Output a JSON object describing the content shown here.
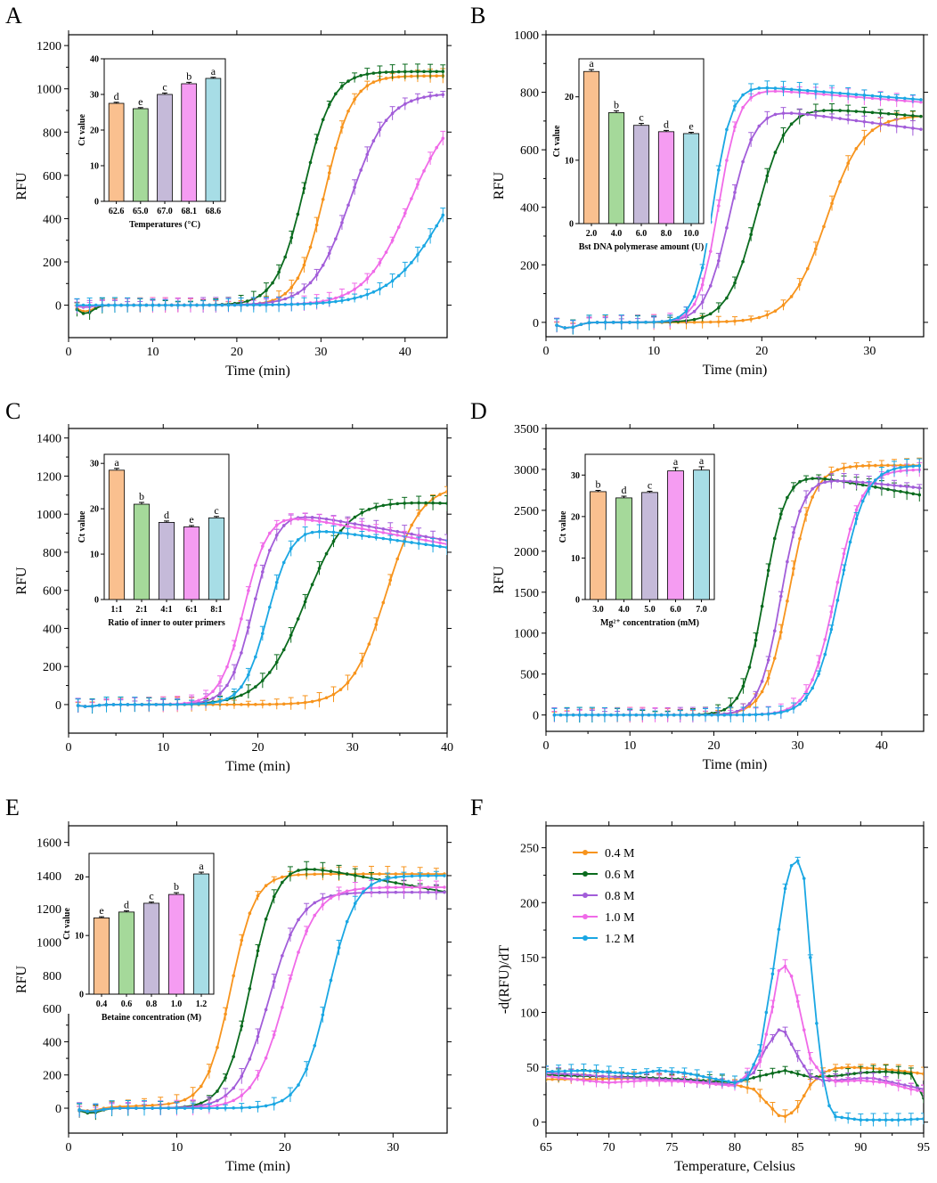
{
  "colors": {
    "orange": "#F7941D",
    "green": "#0A6B1E",
    "purple": "#A25DD9",
    "pink": "#F06AE8",
    "cyan": "#1AA7E3",
    "bar_orange": "#FAC08F",
    "bar_green": "#A5D99A",
    "bar_purple": "#C5BAD9",
    "bar_pink": "#F59CF2",
    "bar_cyan": "#A7DDE6"
  },
  "chart_data": [
    {
      "id": "A",
      "type": "line",
      "panel_label": "A",
      "xlabel": "Time (min)",
      "ylabel": "RFU",
      "xlim": [
        0,
        45
      ],
      "ylim": [
        -150,
        1250
      ],
      "xticks": [
        0,
        10,
        20,
        30,
        40
      ],
      "yticks": [
        0,
        200,
        400,
        600,
        800,
        1000,
        1200
      ],
      "xtick_labels": [
        "0",
        "10",
        "20",
        "30",
        "40"
      ],
      "ytick_labels": [
        "0",
        "200",
        "400",
        "600",
        "800",
        "1000",
        "1200"
      ],
      "series": [
        {
          "name": "62.6",
          "color": "orange",
          "plateau": 1060,
          "t50": 30.5,
          "k": 0.62,
          "dip": -30
        },
        {
          "name": "65.0",
          "color": "green",
          "plateau": 1080,
          "t50": 28.0,
          "k": 0.6,
          "dip": -40
        },
        {
          "name": "67.0",
          "color": "purple",
          "plateau": 980,
          "t50": 33.5,
          "k": 0.45,
          "dip": -10
        },
        {
          "name": "68.1",
          "color": "pink",
          "plateau": 940,
          "t50": 40.5,
          "k": 0.38,
          "dip": -5
        },
        {
          "name": "68.6",
          "color": "cyan",
          "plateau": 900,
          "t50": 45.0,
          "k": 0.3,
          "dip": 0
        }
      ],
      "inset": {
        "xlabel": "Temperatures (°C)",
        "ylabel": "Ct value",
        "ylim": [
          0,
          40
        ],
        "yticks": [
          0,
          10,
          20,
          30,
          40
        ],
        "ytick_labels": [
          "0",
          "10",
          "20",
          "30",
          "40"
        ],
        "categories": [
          "62.6",
          "65.0",
          "67.0",
          "68.1",
          "68.6"
        ],
        "values": [
          27.5,
          26.0,
          30.0,
          33.0,
          34.5
        ],
        "errors": [
          0.3,
          0.3,
          0.4,
          0.4,
          0.3
        ],
        "letters": [
          "d",
          "e",
          "c",
          "b",
          "a"
        ]
      }
    },
    {
      "id": "B",
      "type": "line",
      "panel_label": "B",
      "xlabel": "Time (min)",
      "ylabel": "RFU",
      "xlim": [
        0,
        35
      ],
      "ylim": [
        -50,
        1000
      ],
      "xticks": [
        0,
        10,
        20,
        30
      ],
      "yticks": [
        0,
        200,
        400,
        600,
        800,
        1000
      ],
      "xtick_labels": [
        "0",
        "10",
        "20",
        "30"
      ],
      "ytick_labels": [
        "0",
        "200",
        "400",
        "600",
        "800",
        "1000"
      ],
      "series": [
        {
          "name": "2.0",
          "color": "orange",
          "plateau": 720,
          "t50": 26.0,
          "k": 0.6,
          "dip": -20
        },
        {
          "name": "4.0",
          "color": "green",
          "plateau": 750,
          "t50": 19.5,
          "k": 0.75,
          "dip": -20,
          "decline": 3
        },
        {
          "name": "6.0",
          "color": "purple",
          "plateau": 740,
          "t50": 17.0,
          "k": 0.9,
          "dip": -20,
          "decline": 5
        },
        {
          "name": "8.0",
          "color": "pink",
          "plateau": 810,
          "t50": 16.0,
          "k": 1.1,
          "dip": -20,
          "decline": 3
        },
        {
          "name": "10.0",
          "color": "cyan",
          "plateau": 820,
          "t50": 15.5,
          "k": 1.2,
          "dip": -20,
          "decline": 3
        }
      ],
      "inset": {
        "xlabel": "Bst DNA polymerase amount (U)",
        "ylabel": "Ct value",
        "ylim": [
          0,
          26
        ],
        "yticks": [
          0,
          10,
          20
        ],
        "ytick_labels": [
          "0",
          "10",
          "20"
        ],
        "categories": [
          "2.0",
          "4.0",
          "6.0",
          "8.0",
          "10.0"
        ],
        "values": [
          24.0,
          17.5,
          15.5,
          14.5,
          14.2
        ],
        "errors": [
          0.3,
          0.3,
          0.3,
          0.2,
          0.2
        ],
        "letters": [
          "a",
          "b",
          "c",
          "d",
          "e"
        ]
      }
    },
    {
      "id": "C",
      "type": "line",
      "panel_label": "C",
      "xlabel": "Time (min)",
      "ylabel": "RFU",
      "xlim": [
        0,
        40
      ],
      "ylim": [
        -150,
        1450
      ],
      "xticks": [
        0,
        10,
        20,
        30,
        40
      ],
      "yticks": [
        0,
        200,
        400,
        600,
        800,
        1000,
        1200,
        1400
      ],
      "xtick_labels": [
        "0",
        "10",
        "20",
        "30",
        "40"
      ],
      "ytick_labels": [
        "0",
        "200",
        "400",
        "600",
        "800",
        "1000",
        "1200",
        "1400"
      ],
      "series": [
        {
          "name": "1:1",
          "color": "orange",
          "plateau": 1150,
          "t50": 33.5,
          "k": 0.55,
          "dip": -10
        },
        {
          "name": "2:1",
          "color": "green",
          "plateau": 1080,
          "t50": 25.0,
          "k": 0.45,
          "dip": -10,
          "decline": 2
        },
        {
          "name": "4:1",
          "color": "purple",
          "plateau": 1010,
          "t50": 19.5,
          "k": 0.8,
          "dip": -10,
          "decline": 9
        },
        {
          "name": "6:1",
          "color": "pink",
          "plateau": 1000,
          "t50": 18.5,
          "k": 0.8,
          "dip": -10,
          "decline": 9
        },
        {
          "name": "8:1",
          "color": "cyan",
          "plateau": 930,
          "t50": 21.0,
          "k": 0.8,
          "dip": -10,
          "decline": 7
        }
      ],
      "inset": {
        "xlabel": "Ratio of inner to outer primers",
        "ylabel": "Ct value",
        "ylim": [
          0,
          32
        ],
        "yticks": [
          0,
          10,
          20,
          30
        ],
        "ytick_labels": [
          "0",
          "10",
          "20",
          "30"
        ],
        "categories": [
          "1:1",
          "2:1",
          "4:1",
          "6:1",
          "8:1"
        ],
        "values": [
          28.5,
          21.0,
          17.0,
          16.0,
          18.0
        ],
        "errors": [
          0.4,
          0.4,
          0.3,
          0.3,
          0.3
        ],
        "letters": [
          "a",
          "b",
          "d",
          "e",
          "c"
        ]
      }
    },
    {
      "id": "D",
      "type": "line",
      "panel_label": "D",
      "xlabel": "Time (min)",
      "ylabel": "RFU",
      "xlim": [
        0,
        45
      ],
      "ylim": [
        -200,
        3500
      ],
      "xticks": [
        0,
        10,
        20,
        30,
        40
      ],
      "yticks": [
        0,
        500,
        1000,
        1500,
        2000,
        2500,
        3000,
        3500
      ],
      "xtick_labels": [
        "0",
        "10",
        "20",
        "30",
        "40"
      ],
      "ytick_labels": [
        "0",
        "500",
        "1000",
        "1500",
        "2000",
        "2500",
        "3000",
        "3500"
      ],
      "series": [
        {
          "name": "3.0",
          "color": "orange",
          "plateau": 3050,
          "t50": 29.0,
          "k": 0.7,
          "dip": 0
        },
        {
          "name": "4.0",
          "color": "green",
          "plateau": 2950,
          "t50": 26.0,
          "k": 0.8,
          "dip": 0,
          "decline": 18
        },
        {
          "name": "5.0",
          "color": "purple",
          "plateau": 2900,
          "t50": 28.0,
          "k": 0.8,
          "dip": 0,
          "decline": 10
        },
        {
          "name": "6.0",
          "color": "pink",
          "plateau": 3000,
          "t50": 34.5,
          "k": 0.65,
          "dip": 0
        },
        {
          "name": "7.0",
          "color": "cyan",
          "plateau": 3050,
          "t50": 35.0,
          "k": 0.65,
          "dip": 0
        }
      ],
      "inset": {
        "xlabel": "Mg²⁺ concentration (mM)",
        "ylabel": "Ct value",
        "ylim": [
          0,
          35
        ],
        "yticks": [
          0,
          10,
          20,
          30
        ],
        "ytick_labels": [
          "0",
          "10",
          "20",
          "30"
        ],
        "categories": [
          "3.0",
          "4.0",
          "5.0",
          "6.0",
          "7.0"
        ],
        "values": [
          26.0,
          24.5,
          25.8,
          31.0,
          31.2
        ],
        "errors": [
          0.3,
          0.4,
          0.3,
          0.8,
          0.8
        ],
        "letters": [
          "b",
          "d",
          "c",
          "a",
          "a"
        ]
      }
    },
    {
      "id": "E",
      "type": "line",
      "panel_label": "E",
      "xlabel": "Time (min)",
      "ylabel": "RFU",
      "xlim": [
        0,
        35
      ],
      "ylim": [
        -150,
        1700
      ],
      "xticks": [
        0,
        10,
        20,
        30
      ],
      "yticks": [
        0,
        200,
        400,
        600,
        800,
        1000,
        1200,
        1400,
        1600
      ],
      "xtick_labels": [
        "0",
        "10",
        "20",
        "30"
      ],
      "ytick_labels": [
        "0",
        "200",
        "400",
        "600",
        "800",
        "1000",
        "1200",
        "1400",
        "1600"
      ],
      "series": [
        {
          "name": "0.4",
          "color": "orange",
          "plateau": 1380,
          "t50": 15.0,
          "k": 0.9,
          "dip": -20,
          "base": 30
        },
        {
          "name": "0.6",
          "color": "green",
          "plateau": 1470,
          "t50": 16.8,
          "k": 0.85,
          "dip": -30,
          "decline": 12
        },
        {
          "name": "0.8",
          "color": "purple",
          "plateau": 1300,
          "t50": 18.5,
          "k": 0.7,
          "dip": -20
        },
        {
          "name": "1.0",
          "color": "pink",
          "plateau": 1330,
          "t50": 20.0,
          "k": 0.7,
          "dip": -20
        },
        {
          "name": "1.2",
          "color": "cyan",
          "plateau": 1400,
          "t50": 24.0,
          "k": 0.8,
          "dip": -20
        }
      ],
      "inset": {
        "xlabel": "Betaine concentration (M)",
        "ylabel": "Ct value",
        "ylim": [
          0,
          24
        ],
        "yticks": [
          0,
          10,
          20
        ],
        "ytick_labels": [
          "0",
          "10",
          "20"
        ],
        "categories": [
          "0.4",
          "0.6",
          "0.8",
          "1.0",
          "1.2"
        ],
        "values": [
          13.0,
          14.0,
          15.5,
          17.0,
          20.5
        ],
        "errors": [
          0.2,
          0.2,
          0.2,
          0.3,
          0.3
        ],
        "letters": [
          "e",
          "d",
          "c",
          "b",
          "a"
        ]
      }
    },
    {
      "id": "F",
      "type": "line",
      "panel_label": "F",
      "xlabel": "Temperature, Celsius",
      "ylabel": "-d(RFU)/dT",
      "xlim": [
        65,
        95
      ],
      "ylim": [
        -10,
        270
      ],
      "xticks": [
        65,
        70,
        75,
        80,
        85,
        90,
        95
      ],
      "yticks": [
        0,
        50,
        100,
        150,
        200,
        250
      ],
      "xtick_labels": [
        "65",
        "70",
        "75",
        "80",
        "85",
        "90",
        "95"
      ],
      "ytick_labels": [
        "0",
        "50",
        "100",
        "150",
        "200",
        "250"
      ],
      "series": [
        {
          "name": "0.4 M",
          "color": "orange"
        },
        {
          "name": "0.6 M",
          "color": "green"
        },
        {
          "name": "0.8 M",
          "color": "purple"
        },
        {
          "name": "1.0 M",
          "color": "pink"
        },
        {
          "name": "1.2 M",
          "color": "cyan"
        }
      ],
      "melt_points": {
        "0.4 M": [
          [
            65,
            39
          ],
          [
            68,
            39
          ],
          [
            72,
            40
          ],
          [
            76,
            38
          ],
          [
            80,
            34
          ],
          [
            81.5,
            30
          ],
          [
            82.5,
            18
          ],
          [
            83.5,
            6
          ],
          [
            84.2,
            5
          ],
          [
            85,
            14
          ],
          [
            86,
            34
          ],
          [
            87,
            45
          ],
          [
            88,
            49
          ],
          [
            89,
            50
          ],
          [
            91,
            49
          ],
          [
            93,
            47
          ],
          [
            95,
            44
          ]
        ],
        "0.6 M": [
          [
            65,
            43
          ],
          [
            68,
            42
          ],
          [
            72,
            41
          ],
          [
            76,
            39
          ],
          [
            80,
            36
          ],
          [
            82,
            42
          ],
          [
            84,
            47
          ],
          [
            85,
            44
          ],
          [
            86,
            41
          ],
          [
            88,
            42
          ],
          [
            90,
            45
          ],
          [
            92,
            46
          ],
          [
            94,
            44
          ],
          [
            95,
            22
          ]
        ],
        "0.8 M": [
          [
            65,
            45
          ],
          [
            68,
            43
          ],
          [
            72,
            40
          ],
          [
            76,
            38
          ],
          [
            80,
            34
          ],
          [
            81.5,
            45
          ],
          [
            82.5,
            68
          ],
          [
            83.5,
            84
          ],
          [
            84,
            82
          ],
          [
            85,
            60
          ],
          [
            86,
            42
          ],
          [
            87,
            38
          ],
          [
            88,
            38
          ],
          [
            90,
            40
          ],
          [
            91,
            40
          ],
          [
            93,
            35
          ],
          [
            95,
            30
          ]
        ],
        "1.0 M": [
          [
            65,
            42
          ],
          [
            68,
            38
          ],
          [
            70,
            36
          ],
          [
            73,
            38
          ],
          [
            76,
            37
          ],
          [
            80,
            33
          ],
          [
            82,
            55
          ],
          [
            83,
            105
          ],
          [
            83.5,
            138
          ],
          [
            84,
            142
          ],
          [
            84.5,
            133
          ],
          [
            85,
            110
          ],
          [
            86,
            58
          ],
          [
            87,
            42
          ],
          [
            88,
            37
          ],
          [
            90,
            38
          ],
          [
            92,
            36
          ],
          [
            94,
            30
          ],
          [
            95,
            28
          ]
        ],
        "1.2 M": [
          [
            65,
            46
          ],
          [
            68,
            47
          ],
          [
            72,
            44
          ],
          [
            74,
            47
          ],
          [
            76,
            45
          ],
          [
            79,
            38
          ],
          [
            80,
            36
          ],
          [
            81,
            40
          ],
          [
            82,
            65
          ],
          [
            83,
            135
          ],
          [
            83.8,
            200
          ],
          [
            84.3,
            232
          ],
          [
            85,
            238
          ],
          [
            85.5,
            222
          ],
          [
            86,
            150
          ],
          [
            86.5,
            90
          ],
          [
            87,
            42
          ],
          [
            87.5,
            15
          ],
          [
            88,
            5
          ],
          [
            90,
            2
          ],
          [
            93,
            2
          ],
          [
            95,
            3
          ]
        ]
      }
    }
  ]
}
